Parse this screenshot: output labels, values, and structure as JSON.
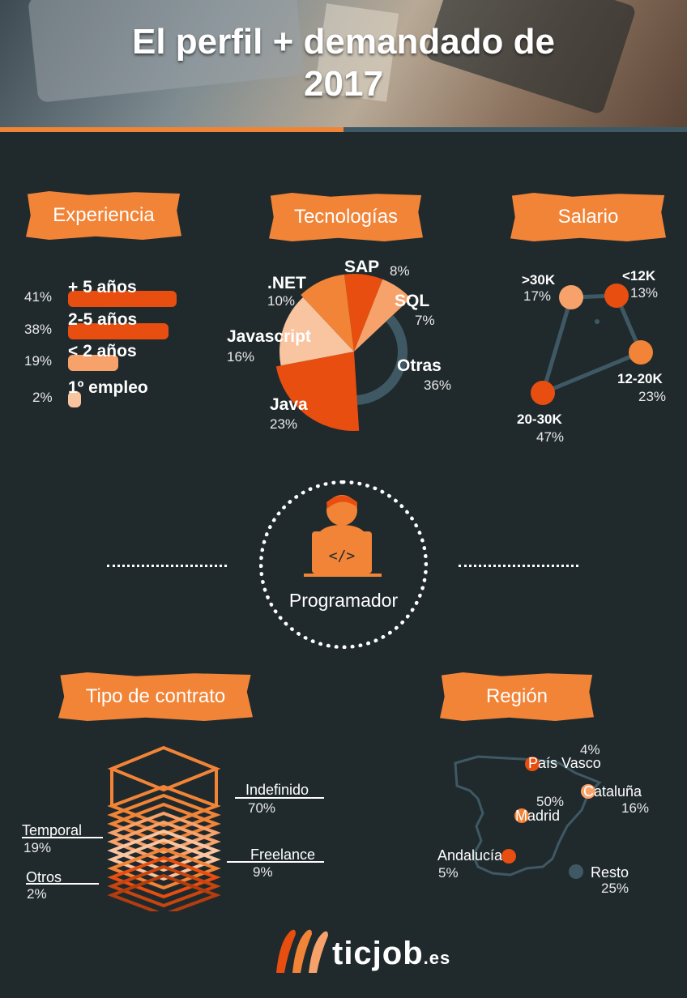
{
  "title_line1": "El perfil + demandado de",
  "title_line2": "2017",
  "sections": {
    "experiencia": "Experiencia",
    "tecnologias": "Tecnologías",
    "salario": "Salario",
    "contrato": "Tipo de contrato",
    "region": "Región"
  },
  "center_label": "Programador",
  "brand": {
    "name": "ticjob",
    "tld": ".es"
  },
  "colors": {
    "orange": "#f28437",
    "dark_orange": "#e84e0f",
    "light_orange": "#f7a26b",
    "pale": "#f9c4a0",
    "bg": "#202a2d",
    "slate": "#3f5964"
  },
  "chart_data": [
    {
      "type": "bar",
      "title": "Experiencia",
      "categories": [
        "+ 5 años",
        "2-5 años",
        "< 2 años",
        "1º empleo"
      ],
      "values": [
        41,
        38,
        19,
        2
      ],
      "labels": [
        "41%",
        "38%",
        "19%",
        "2%"
      ]
    },
    {
      "type": "pie",
      "title": "Tecnologías",
      "categories": [
        "SAP",
        "SQL",
        "Otras",
        "Java",
        "Javascript",
        ".NET"
      ],
      "values": [
        8,
        7,
        36,
        23,
        16,
        10
      ],
      "labels": [
        "8%",
        "7%",
        "36%",
        "23%",
        "16%",
        "10%"
      ]
    },
    {
      "type": "scatter",
      "title": "Salario",
      "categories": [
        ">30K",
        "<12K",
        "12-20K",
        "20-30K"
      ],
      "values": [
        17,
        13,
        23,
        47
      ],
      "labels": [
        "17%",
        "13%",
        "23%",
        "47%"
      ]
    },
    {
      "type": "bar",
      "title": "Tipo de contrato",
      "categories": [
        "Indefinido",
        "Temporal",
        "Freelance",
        "Otros"
      ],
      "values": [
        70,
        19,
        9,
        2
      ],
      "labels": [
        "70%",
        "19%",
        "9%",
        "2%"
      ]
    },
    {
      "type": "scatter",
      "title": "Región",
      "categories": [
        "País Vasco",
        "Cataluña",
        "Madrid",
        "Andalucía",
        "Resto"
      ],
      "values": [
        4,
        16,
        50,
        5,
        25
      ],
      "labels": [
        "4%",
        "16%",
        "50%",
        "5%",
        "25%"
      ]
    }
  ]
}
